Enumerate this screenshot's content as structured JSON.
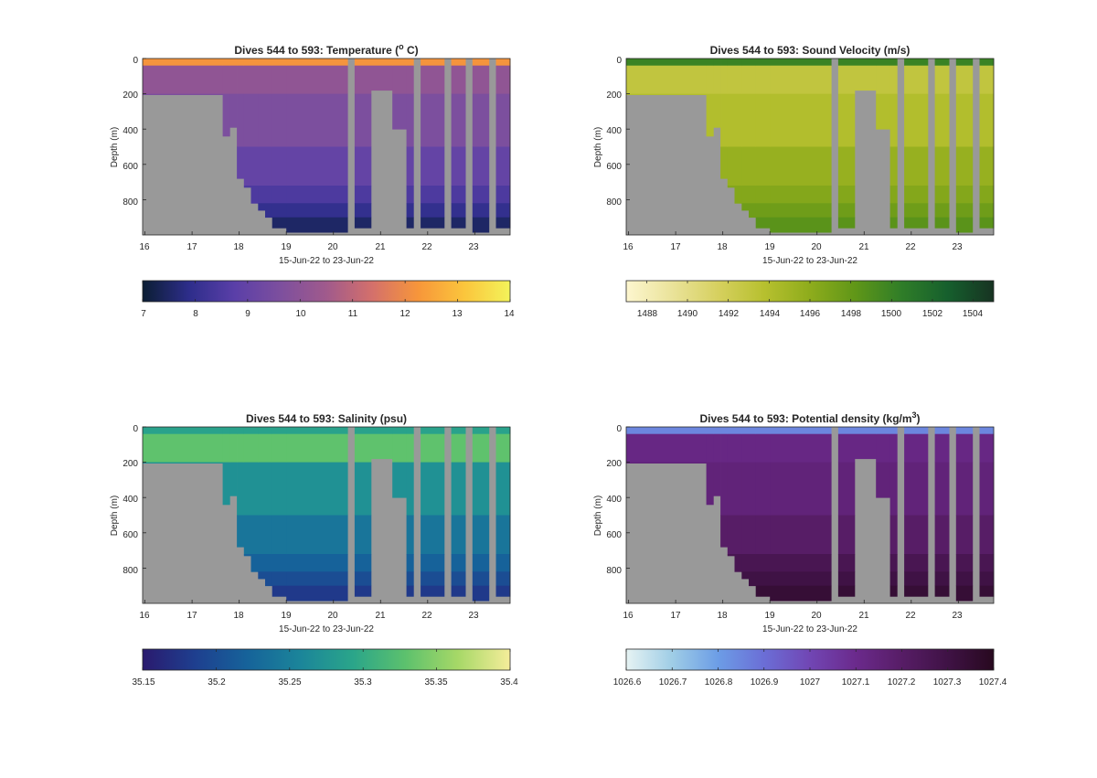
{
  "chart_data": [
    {
      "type": "heatmap",
      "title": "Dives 544 to 593: Temperature (",
      "title_sup": "o",
      "title_tail": " C)",
      "xlabel": "15-Jun-22 to 23-Jun-22",
      "ylabel": "Depth (m)",
      "xlim": [
        15.95,
        23.75
      ],
      "ylim": [
        1000,
        0
      ],
      "xticks": [
        "16",
        "17",
        "18",
        "19",
        "20",
        "21",
        "22",
        "23"
      ],
      "yticks": [
        "0",
        "200",
        "400",
        "600",
        "800"
      ],
      "colorbar": {
        "range": [
          7,
          14
        ],
        "ticks": [
          "7",
          "8",
          "9",
          "10",
          "11",
          "12",
          "13",
          "14"
        ],
        "colors": [
          "#0b1e33",
          "#2d2d8a",
          "#5a3fa8",
          "#7d4f9e",
          "#a05a8c",
          "#d4706b",
          "#f7963a",
          "#fbc53c",
          "#f3f35a"
        ]
      },
      "layers": [
        {
          "from": 0,
          "to": 40,
          "value": 12.2
        },
        {
          "from": 40,
          "to": 200,
          "value": 10.1
        },
        {
          "from": 200,
          "to": 500,
          "value": 9.6
        },
        {
          "from": 500,
          "to": 720,
          "value": 9.0
        },
        {
          "from": 720,
          "to": 820,
          "value": 8.5
        },
        {
          "from": 820,
          "to": 900,
          "value": 8.0
        },
        {
          "from": 900,
          "to": 1000,
          "value": 7.5
        }
      ]
    },
    {
      "type": "heatmap",
      "title": "Dives 544 to 593: Sound Velocity (m/s)",
      "xlabel": "15-Jun-22 to 23-Jun-22",
      "ylabel": "Depth (m)",
      "xlim": [
        15.95,
        23.75
      ],
      "ylim": [
        1000,
        0
      ],
      "xticks": [
        "16",
        "17",
        "18",
        "19",
        "20",
        "21",
        "22",
        "23"
      ],
      "yticks": [
        "0",
        "200",
        "400",
        "600",
        "800"
      ],
      "colorbar": {
        "range": [
          1487,
          1505
        ],
        "ticks": [
          "1488",
          "1490",
          "1492",
          "1494",
          "1496",
          "1498",
          "1500",
          "1502",
          "1504"
        ],
        "colors": [
          "#fdf6cf",
          "#eae39a",
          "#d6d05f",
          "#b7c02f",
          "#8eac1c",
          "#5f9618",
          "#2f7d28",
          "#165f2d",
          "#173322"
        ]
      },
      "layers": [
        {
          "from": 0,
          "to": 40,
          "value": 1500
        },
        {
          "from": 40,
          "to": 200,
          "value": 1493
        },
        {
          "from": 200,
          "to": 500,
          "value": 1494
        },
        {
          "from": 500,
          "to": 720,
          "value": 1495.5
        },
        {
          "from": 720,
          "to": 820,
          "value": 1496.5
        },
        {
          "from": 820,
          "to": 900,
          "value": 1497.5
        },
        {
          "from": 900,
          "to": 1000,
          "value": 1498.5
        }
      ]
    },
    {
      "type": "heatmap",
      "title": "Dives 544 to 593: Salinity (psu)",
      "xlabel": "15-Jun-22 to 23-Jun-22",
      "ylabel": "Depth (m)",
      "xlim": [
        15.95,
        23.75
      ],
      "ylim": [
        1000,
        0
      ],
      "xticks": [
        "16",
        "17",
        "18",
        "19",
        "20",
        "21",
        "22",
        "23"
      ],
      "yticks": [
        "0",
        "200",
        "400",
        "600",
        "800"
      ],
      "colorbar": {
        "range": [
          35.15,
          35.4
        ],
        "ticks": [
          "35.15",
          "35.2",
          "35.25",
          "35.3",
          "35.35",
          "35.4"
        ],
        "colors": [
          "#2a1a6e",
          "#1e3f8f",
          "#16639a",
          "#1b859a",
          "#2aa58a",
          "#5cc16d",
          "#a6d867",
          "#f5ed9a"
        ]
      },
      "layers": [
        {
          "from": 0,
          "to": 40,
          "value": 35.29
        },
        {
          "from": 40,
          "to": 200,
          "value": 35.33
        },
        {
          "from": 200,
          "to": 500,
          "value": 35.27
        },
        {
          "from": 500,
          "to": 720,
          "value": 35.24
        },
        {
          "from": 720,
          "to": 820,
          "value": 35.22
        },
        {
          "from": 820,
          "to": 900,
          "value": 35.2
        },
        {
          "from": 900,
          "to": 1000,
          "value": 35.18
        }
      ]
    },
    {
      "type": "heatmap",
      "title": "Dives 544 to 593: Potential density (kg/m",
      "title_sup": "3",
      "title_tail": ")",
      "xlabel": "15-Jun-22 to 23-Jun-22",
      "ylabel": "Depth (m)",
      "xlim": [
        15.95,
        23.75
      ],
      "ylim": [
        1000,
        0
      ],
      "xticks": [
        "16",
        "17",
        "18",
        "19",
        "20",
        "21",
        "22",
        "23"
      ],
      "yticks": [
        "0",
        "200",
        "400",
        "600",
        "800"
      ],
      "colorbar": {
        "range": [
          1026.6,
          1027.4
        ],
        "ticks": [
          "1026.6",
          "1026.7",
          "1026.8",
          "1026.9",
          "1027",
          "1027.1",
          "1027.2",
          "1027.3",
          "1027.4"
        ],
        "colors": [
          "#e6f3f3",
          "#9fcde6",
          "#6c9de6",
          "#6b6ed6",
          "#7146b4",
          "#6b2a8c",
          "#571d66",
          "#3f1245",
          "#28091f"
        ]
      },
      "layers": [
        {
          "from": 0,
          "to": 40,
          "value": 1026.85
        },
        {
          "from": 40,
          "to": 200,
          "value": 1027.12
        },
        {
          "from": 200,
          "to": 500,
          "value": 1027.15
        },
        {
          "from": 500,
          "to": 720,
          "value": 1027.2
        },
        {
          "from": 720,
          "to": 820,
          "value": 1027.26
        },
        {
          "from": 820,
          "to": 900,
          "value": 1027.3
        },
        {
          "from": 900,
          "to": 1000,
          "value": 1027.34
        }
      ]
    }
  ],
  "coverage": {
    "nodata_color": "#999999",
    "profiles": [
      {
        "from": 15.95,
        "to": 17.65,
        "max_depth": 205
      },
      {
        "from": 17.65,
        "to": 17.8,
        "max_depth": 440
      },
      {
        "from": 17.8,
        "to": 17.95,
        "max_depth": 390
      },
      {
        "from": 17.95,
        "to": 18.1,
        "max_depth": 680
      },
      {
        "from": 18.1,
        "to": 18.25,
        "max_depth": 730
      },
      {
        "from": 18.25,
        "to": 18.4,
        "max_depth": 820
      },
      {
        "from": 18.4,
        "to": 18.55,
        "max_depth": 860
      },
      {
        "from": 18.55,
        "to": 18.7,
        "max_depth": 900
      },
      {
        "from": 18.7,
        "to": 19.0,
        "max_depth": 960
      },
      {
        "from": 19.0,
        "to": 20.3,
        "max_depth": 985
      },
      {
        "from": 20.3,
        "to": 20.45,
        "max_depth": 0
      },
      {
        "from": 20.45,
        "to": 20.8,
        "max_depth": 960
      },
      {
        "from": 20.8,
        "to": 21.25,
        "max_depth": 180
      },
      {
        "from": 21.25,
        "to": 21.55,
        "max_depth": 400
      },
      {
        "from": 21.55,
        "to": 21.7,
        "max_depth": 960
      },
      {
        "from": 21.7,
        "to": 21.85,
        "max_depth": 0
      },
      {
        "from": 21.85,
        "to": 22.35,
        "max_depth": 960
      },
      {
        "from": 22.35,
        "to": 22.5,
        "max_depth": 0
      },
      {
        "from": 22.5,
        "to": 22.8,
        "max_depth": 960
      },
      {
        "from": 22.8,
        "to": 22.95,
        "max_depth": 0
      },
      {
        "from": 22.95,
        "to": 23.3,
        "max_depth": 985
      },
      {
        "from": 23.3,
        "to": 23.45,
        "max_depth": 0
      },
      {
        "from": 23.45,
        "to": 23.75,
        "max_depth": 960
      }
    ]
  }
}
